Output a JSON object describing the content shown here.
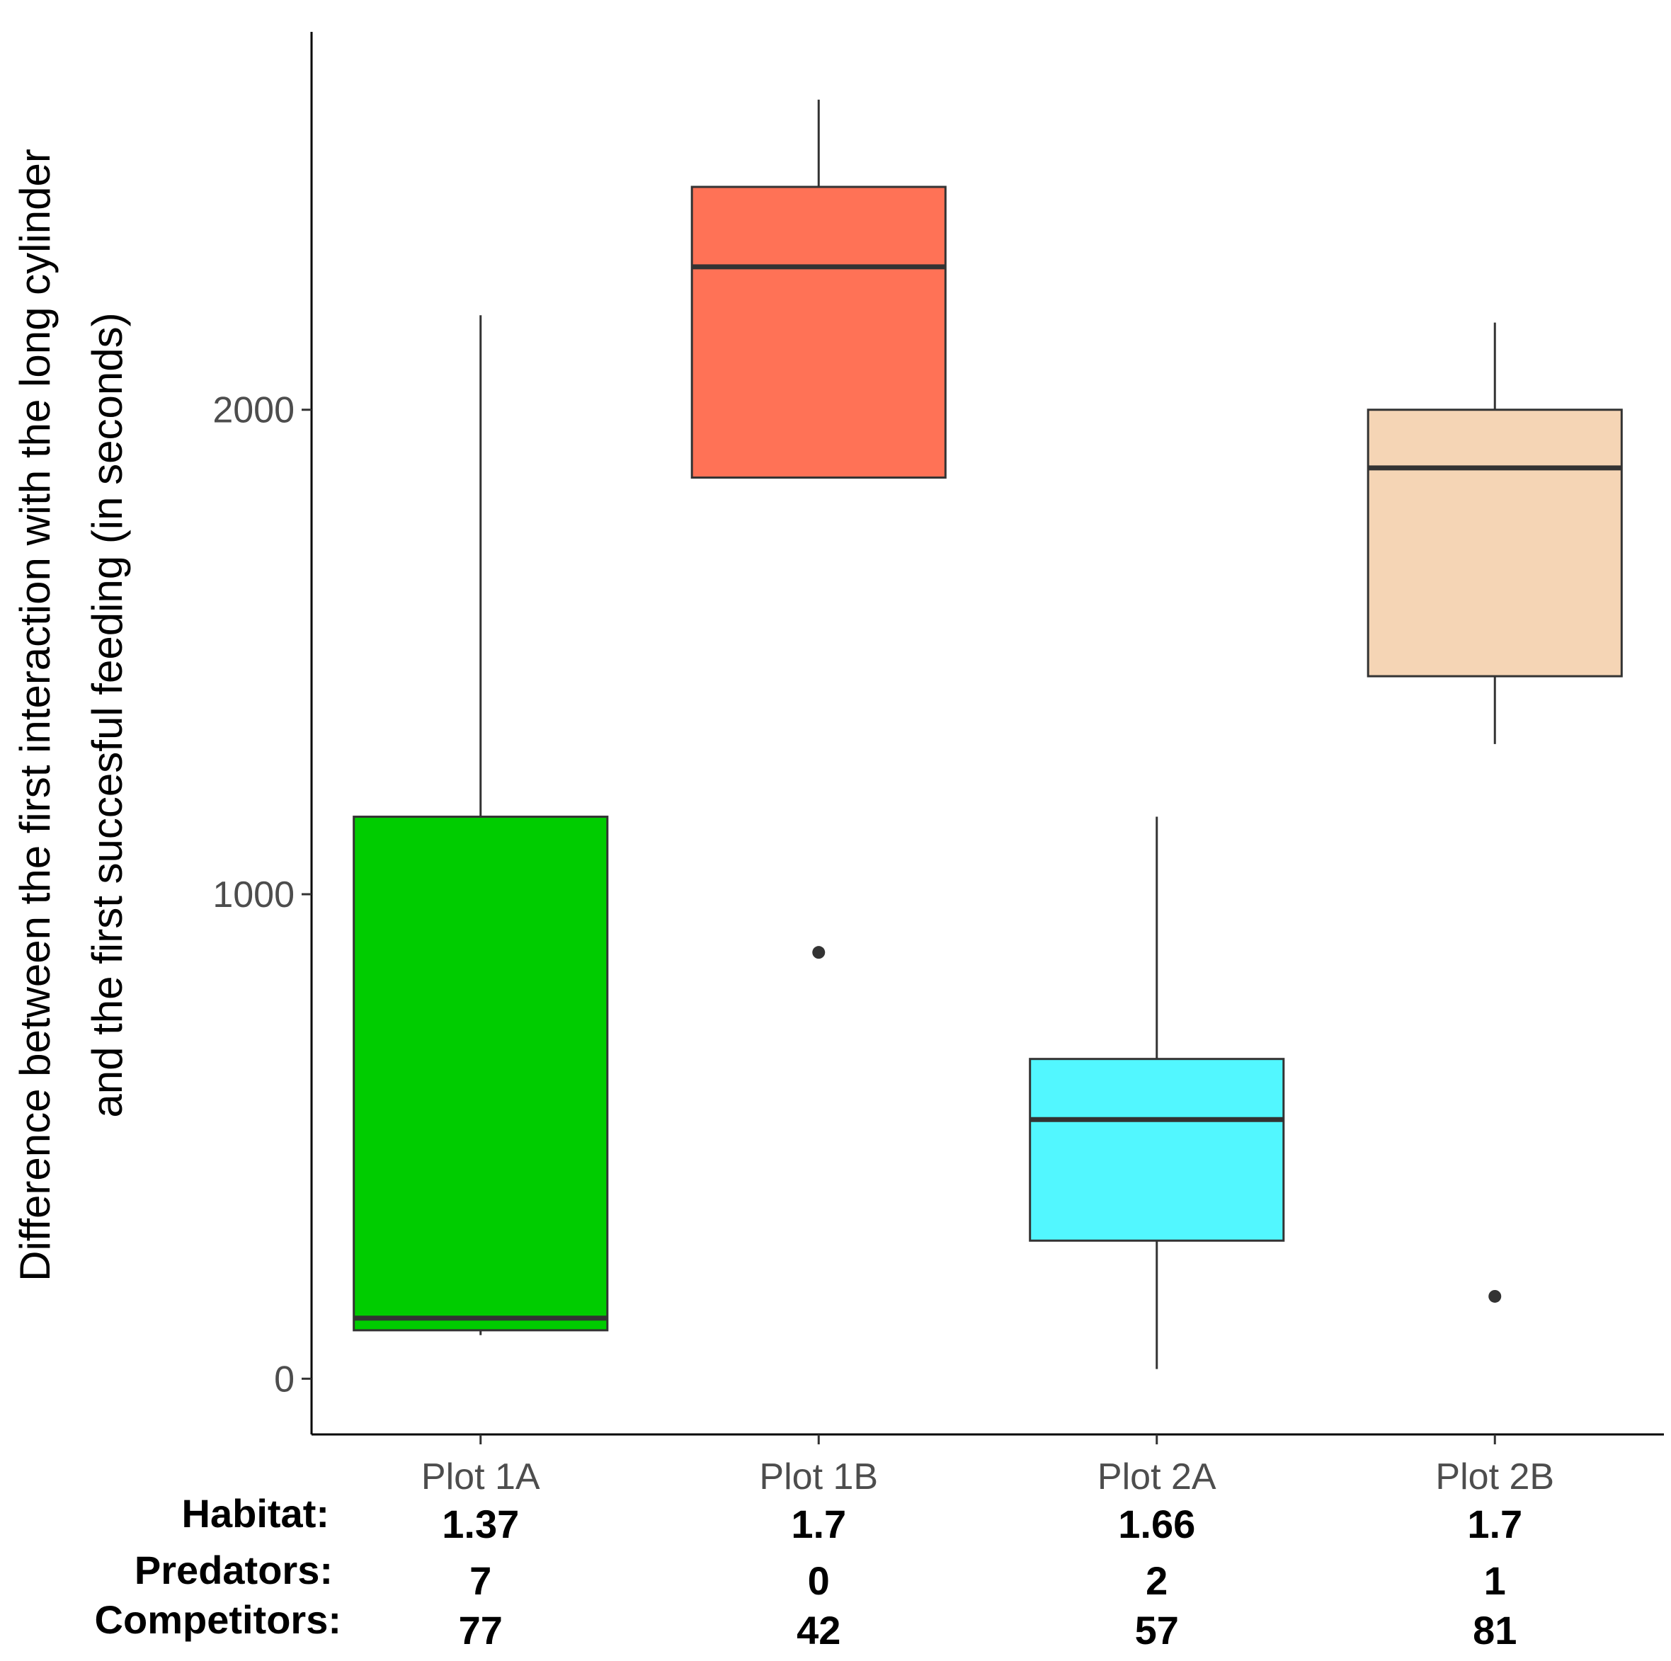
{
  "chart_data": {
    "type": "box",
    "title": "",
    "xlabel": "",
    "ylabel_lines": [
      "Difference between the first interaction with the long cylinder",
      "and the first succesful feeding (in seconds)"
    ],
    "ylim": [
      -115,
      2780
    ],
    "yticks": [
      0,
      1000,
      2000
    ],
    "categories": [
      "Plot 1A",
      "Plot 1B",
      "Plot 2A",
      "Plot 2B"
    ],
    "boxes": [
      {
        "name": "Plot 1A",
        "whisker_low": 90,
        "q1": 100,
        "median": 125,
        "q3": 1160,
        "whisker_high": 2195,
        "outliers": [],
        "fill": "#00CC00"
      },
      {
        "name": "Plot 1B",
        "whisker_low": 1860,
        "q1": 1860,
        "median": 2295,
        "q3": 2460,
        "whisker_high": 2640,
        "outliers": [
          880
        ],
        "fill": "#FF7256"
      },
      {
        "name": "Plot 2A",
        "whisker_low": 20,
        "q1": 285,
        "median": 535,
        "q3": 660,
        "whisker_high": 1160,
        "outliers": [],
        "fill": "#52F7FF"
      },
      {
        "name": "Plot 2B",
        "whisker_low": 1310,
        "q1": 1450,
        "median": 1880,
        "q3": 2000,
        "whisker_high": 2180,
        "outliers": [
          170
        ],
        "fill": "#F5D5B5"
      }
    ],
    "annotation_rows": [
      {
        "label": "Habitat:",
        "values": [
          "1.37",
          "1.7",
          "1.66",
          "1.7"
        ]
      },
      {
        "label": "Predators:",
        "values": [
          "7",
          "0",
          "2",
          "1"
        ]
      },
      {
        "label": "Competitors:",
        "values": [
          "77",
          "42",
          "57",
          "81"
        ]
      }
    ]
  }
}
